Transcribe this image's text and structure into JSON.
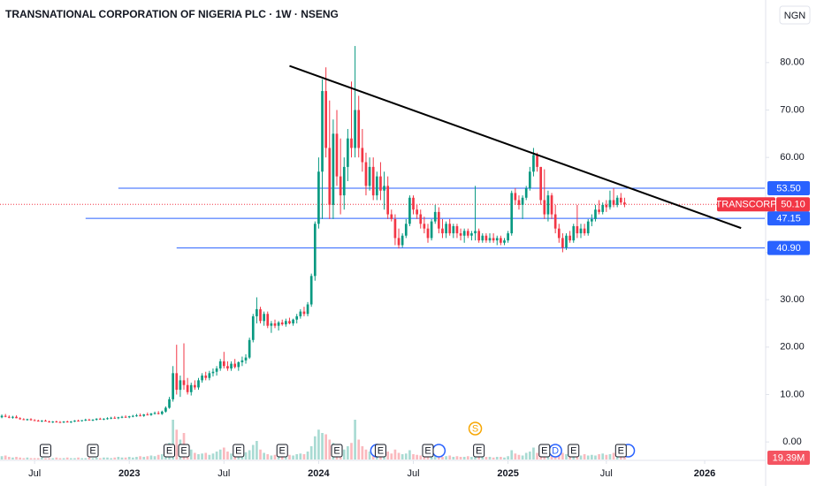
{
  "chart_data": {
    "type": "candlestick",
    "title": "TRANSNATIONAL CORPORATION OF NIGERIA PLC · 1W · NSENG",
    "currency": "NGN",
    "up_color": "#089981",
    "down_color": "#f23645",
    "xlim": [
      -0.5,
      209.5
    ],
    "xticks": [
      {
        "value": 9,
        "label": "Jul"
      },
      {
        "value": 35,
        "label": "2023"
      },
      {
        "value": 61,
        "label": "Jul"
      },
      {
        "value": 87,
        "label": "2024"
      },
      {
        "value": 113,
        "label": "Jul"
      },
      {
        "value": 139,
        "label": "2025"
      },
      {
        "value": 166,
        "label": "Jul"
      },
      {
        "value": 193,
        "label": "2026"
      }
    ],
    "ylim": [
      -3.7,
      93.2
    ],
    "yticks": [
      {
        "value": 0,
        "label": "0.00"
      },
      {
        "value": 10,
        "label": "10.00"
      },
      {
        "value": 20,
        "label": "20.00"
      },
      {
        "value": 30,
        "label": "30.00"
      },
      {
        "value": 40,
        "label": "40.00"
      },
      {
        "value": 50,
        "label": "50.00"
      },
      {
        "value": 60,
        "label": "60.00"
      },
      {
        "value": 70,
        "label": "70.00"
      },
      {
        "value": 80,
        "label": "80.00"
      }
    ],
    "candles": [
      [
        5.2,
        5.8,
        5.0,
        5.5
      ],
      [
        5.5,
        5.9,
        5.2,
        5.3
      ],
      [
        5.3,
        5.6,
        5.0,
        5.1
      ],
      [
        5.1,
        5.5,
        4.9,
        5.3
      ],
      [
        5.3,
        5.6,
        5.0,
        5.0
      ],
      [
        5.0,
        5.2,
        4.7,
        4.8
      ],
      [
        4.8,
        5.0,
        4.6,
        4.7
      ],
      [
        4.7,
        4.9,
        4.5,
        4.8
      ],
      [
        4.8,
        5.0,
        4.5,
        4.6
      ],
      [
        4.6,
        4.8,
        4.4,
        4.5
      ],
      [
        4.5,
        4.7,
        4.3,
        4.4
      ],
      [
        4.4,
        4.6,
        4.2,
        4.5
      ],
      [
        4.5,
        4.7,
        4.3,
        4.3
      ],
      [
        4.3,
        4.5,
        4.1,
        4.2
      ],
      [
        4.2,
        4.4,
        4.0,
        4.3
      ],
      [
        4.3,
        4.5,
        4.1,
        4.2
      ],
      [
        4.2,
        4.4,
        4.0,
        4.1
      ],
      [
        4.1,
        4.4,
        4.0,
        4.3
      ],
      [
        4.3,
        4.5,
        4.1,
        4.2
      ],
      [
        4.2,
        4.4,
        4.0,
        4.3
      ],
      [
        4.3,
        4.6,
        4.2,
        4.5
      ],
      [
        4.5,
        4.7,
        4.3,
        4.4
      ],
      [
        4.4,
        4.6,
        4.3,
        4.6
      ],
      [
        4.6,
        4.9,
        4.4,
        4.7
      ],
      [
        4.7,
        4.9,
        4.5,
        4.6
      ],
      [
        4.6,
        4.8,
        4.4,
        4.7
      ],
      [
        4.7,
        5.0,
        4.5,
        4.9
      ],
      [
        4.9,
        5.1,
        4.7,
        4.8
      ],
      [
        4.8,
        5.0,
        4.6,
        4.9
      ],
      [
        4.9,
        5.2,
        4.7,
        5.0
      ],
      [
        5.0,
        5.3,
        4.8,
        5.1
      ],
      [
        5.1,
        5.4,
        4.9,
        5.0
      ],
      [
        5.0,
        5.3,
        4.8,
        5.2
      ],
      [
        5.2,
        5.5,
        5.0,
        5.3
      ],
      [
        5.3,
        5.6,
        5.1,
        5.2
      ],
      [
        5.2,
        5.5,
        5.0,
        5.4
      ],
      [
        5.4,
        5.7,
        5.2,
        5.5
      ],
      [
        5.5,
        5.9,
        5.3,
        5.6
      ],
      [
        5.6,
        6.0,
        5.4,
        5.5
      ],
      [
        5.5,
        5.9,
        5.3,
        5.8
      ],
      [
        5.8,
        6.2,
        5.6,
        5.7
      ],
      [
        5.7,
        6.1,
        5.5,
        6.0
      ],
      [
        6.0,
        6.4,
        5.8,
        6.1
      ],
      [
        6.1,
        6.5,
        5.8,
        5.9
      ],
      [
        5.9,
        6.6,
        5.7,
        6.4
      ],
      [
        6.4,
        7.5,
        6.2,
        7.2
      ],
      [
        7.2,
        9.5,
        7.0,
        9.0
      ],
      [
        9.0,
        16.0,
        8.5,
        14.5
      ],
      [
        14.5,
        20.5,
        10.0,
        11.0
      ],
      [
        11.0,
        14.0,
        9.5,
        13.0
      ],
      [
        13.0,
        20.8,
        11.0,
        12.0
      ],
      [
        12.0,
        13.5,
        10.0,
        10.5
      ],
      [
        10.5,
        12.5,
        9.8,
        12.0
      ],
      [
        12.0,
        13.0,
        11.0,
        11.5
      ],
      [
        11.5,
        13.5,
        11.0,
        13.0
      ],
      [
        13.0,
        14.5,
        12.5,
        14.0
      ],
      [
        14.0,
        14.8,
        13.0,
        13.5
      ],
      [
        13.5,
        15.0,
        13.0,
        14.5
      ],
      [
        14.5,
        15.5,
        13.8,
        14.8
      ],
      [
        14.8,
        16.0,
        14.0,
        15.5
      ],
      [
        15.5,
        17.5,
        15.0,
        17.0
      ],
      [
        17.0,
        19.0,
        15.5,
        16.0
      ],
      [
        16.0,
        17.0,
        15.0,
        15.5
      ],
      [
        15.5,
        17.0,
        15.0,
        16.5
      ],
      [
        16.5,
        17.5,
        15.5,
        15.8
      ],
      [
        15.8,
        17.0,
        15.0,
        16.8
      ],
      [
        16.8,
        18.0,
        16.0,
        17.2
      ],
      [
        17.2,
        18.5,
        16.5,
        17.8
      ],
      [
        17.8,
        22.0,
        17.5,
        21.5
      ],
      [
        21.5,
        27.0,
        21.0,
        26.5
      ],
      [
        26.5,
        30.5,
        25.0,
        28.0
      ],
      [
        28.0,
        28.5,
        25.0,
        25.5
      ],
      [
        25.5,
        27.5,
        24.5,
        27.0
      ],
      [
        27.0,
        27.5,
        24.0,
        24.5
      ],
      [
        24.5,
        25.5,
        23.0,
        25.0
      ],
      [
        25.0,
        25.8,
        24.0,
        24.5
      ],
      [
        24.5,
        25.5,
        23.5,
        25.2
      ],
      [
        25.2,
        25.8,
        24.5,
        24.8
      ],
      [
        24.8,
        26.0,
        24.3,
        25.5
      ],
      [
        25.5,
        26.2,
        24.8,
        25.0
      ],
      [
        25.0,
        26.0,
        24.5,
        25.8
      ],
      [
        25.8,
        27.0,
        25.0,
        26.5
      ],
      [
        26.5,
        28.0,
        26.0,
        27.5
      ],
      [
        27.5,
        28.5,
        26.5,
        27.0
      ],
      [
        27.0,
        29.5,
        26.5,
        29.0
      ],
      [
        29.0,
        35.5,
        28.5,
        35.0
      ],
      [
        35.0,
        46.5,
        34.0,
        46.0
      ],
      [
        46.0,
        60.0,
        45.0,
        57.0
      ],
      [
        57.0,
        76.5,
        47.0,
        74.0
      ],
      [
        74.0,
        79.0,
        60.0,
        62.0
      ],
      [
        62.0,
        72.0,
        47.0,
        50.0
      ],
      [
        50.0,
        68.0,
        47.0,
        65.0
      ],
      [
        65.0,
        70.0,
        54.0,
        56.0
      ],
      [
        56.0,
        64.0,
        48.0,
        52.0
      ],
      [
        52.0,
        60.0,
        49.0,
        58.0
      ],
      [
        58.0,
        66.0,
        55.0,
        64.0
      ],
      [
        64.0,
        76.0,
        60.0,
        62.0
      ],
      [
        62.0,
        83.5,
        60.0,
        70.0
      ],
      [
        70.0,
        73.0,
        60.0,
        62.0
      ],
      [
        62.0,
        66.0,
        57.0,
        59.0
      ],
      [
        59.0,
        61.0,
        52.0,
        54.0
      ],
      [
        54.0,
        60.0,
        53.0,
        58.0
      ],
      [
        58.0,
        60.0,
        51.0,
        52.0
      ],
      [
        52.0,
        57.0,
        51.0,
        56.0
      ],
      [
        56.0,
        59.0,
        51.0,
        53.0
      ],
      [
        53.0,
        57.0,
        49.0,
        54.0
      ],
      [
        54.0,
        56.0,
        47.0,
        48.0
      ],
      [
        48.0,
        49.0,
        46.5,
        47.0
      ],
      [
        47.0,
        48.0,
        41.5,
        43.0
      ],
      [
        43.0,
        45.0,
        40.8,
        41.5
      ],
      [
        41.5,
        44.0,
        41.0,
        43.5
      ],
      [
        43.5,
        47.0,
        43.0,
        46.0
      ],
      [
        46.0,
        52.0,
        45.5,
        51.5
      ],
      [
        51.5,
        52.0,
        48.0,
        49.0
      ],
      [
        49.0,
        50.0,
        47.0,
        48.0
      ],
      [
        48.0,
        49.0,
        45.0,
        46.0
      ],
      [
        46.0,
        47.5,
        44.0,
        45.0
      ],
      [
        45.0,
        46.0,
        42.0,
        43.0
      ],
      [
        43.0,
        47.0,
        42.5,
        46.5
      ],
      [
        46.5,
        50.0,
        46.0,
        48.5
      ],
      [
        48.5,
        49.5,
        44.0,
        45.0
      ],
      [
        45.0,
        47.0,
        43.0,
        44.0
      ],
      [
        44.0,
        46.5,
        43.0,
        46.0
      ],
      [
        46.0,
        47.0,
        43.5,
        44.0
      ],
      [
        44.0,
        46.0,
        43.0,
        45.5
      ],
      [
        45.5,
        46.0,
        43.0,
        44.0
      ],
      [
        44.0,
        45.0,
        42.5,
        43.5
      ],
      [
        43.5,
        45.0,
        42.0,
        44.5
      ],
      [
        44.5,
        45.0,
        43.0,
        43.5
      ],
      [
        43.5,
        44.5,
        42.5,
        44.0
      ],
      [
        44.0,
        54.0,
        42.5,
        44.5
      ],
      [
        44.5,
        45.0,
        42.0,
        42.5
      ],
      [
        42.5,
        44.0,
        42.0,
        43.5
      ],
      [
        43.5,
        44.0,
        42.0,
        42.5
      ],
      [
        42.5,
        44.0,
        42.0,
        43.0
      ],
      [
        43.0,
        44.0,
        42.0,
        42.5
      ],
      [
        42.5,
        43.5,
        41.5,
        43.0
      ],
      [
        43.0,
        43.5,
        41.5,
        42.0
      ],
      [
        42.0,
        43.0,
        41.5,
        42.5
      ],
      [
        42.5,
        44.5,
        42.0,
        44.0
      ],
      [
        44.0,
        53.0,
        43.5,
        52.5
      ],
      [
        52.5,
        53.5,
        50.0,
        51.0
      ],
      [
        51.0,
        52.0,
        49.0,
        50.0
      ],
      [
        50.0,
        52.0,
        47.0,
        51.5
      ],
      [
        51.5,
        54.0,
        51.0,
        53.5
      ],
      [
        53.5,
        58.0,
        53.0,
        57.0
      ],
      [
        57.0,
        62.0,
        56.0,
        60.5
      ],
      [
        60.5,
        61.0,
        57.0,
        58.0
      ],
      [
        58.0,
        58.0,
        50.0,
        51.0
      ],
      [
        51.0,
        57.5,
        47.0,
        48.0
      ],
      [
        48.0,
        53.0,
        46.5,
        52.0
      ],
      [
        52.0,
        52.5,
        47.0,
        48.0
      ],
      [
        48.0,
        50.0,
        44.0,
        45.0
      ],
      [
        45.0,
        46.0,
        42.0,
        43.0
      ],
      [
        43.0,
        44.0,
        40.0,
        41.0
      ],
      [
        41.0,
        44.0,
        40.5,
        43.5
      ],
      [
        43.5,
        44.5,
        42.0,
        42.5
      ],
      [
        42.5,
        46.0,
        42.0,
        45.5
      ],
      [
        45.5,
        50.0,
        43.0,
        44.0
      ],
      [
        44.0,
        46.0,
        43.0,
        45.0
      ],
      [
        45.0,
        46.0,
        43.5,
        44.0
      ],
      [
        44.0,
        47.0,
        43.5,
        46.5
      ],
      [
        46.5,
        48.0,
        45.5,
        47.0
      ],
      [
        47.0,
        50.0,
        46.5,
        49.0
      ],
      [
        49.0,
        51.0,
        48.0,
        48.5
      ],
      [
        48.5,
        50.5,
        48.0,
        50.0
      ],
      [
        50.0,
        51.0,
        48.5,
        49.5
      ],
      [
        49.5,
        53.0,
        49.0,
        51.0
      ],
      [
        51.0,
        53.5,
        49.5,
        50.0
      ],
      [
        50.0,
        52.0,
        49.5,
        51.5
      ],
      [
        51.5,
        52.5,
        50.0,
        50.5
      ],
      [
        50.5,
        51.5,
        49.5,
        50.1
      ]
    ],
    "volume": [
      5,
      6,
      4,
      3,
      4,
      3,
      2,
      3,
      2,
      2,
      2,
      3,
      2,
      2,
      2,
      3,
      2,
      2,
      3,
      2,
      2,
      3,
      2,
      2,
      3,
      2,
      3,
      2,
      3,
      3,
      2,
      3,
      4,
      3,
      3,
      4,
      3,
      4,
      5,
      4,
      5,
      6,
      5,
      7,
      8,
      12,
      25,
      60,
      45,
      30,
      40,
      20,
      15,
      10,
      8,
      9,
      10,
      7,
      9,
      12,
      15,
      18,
      12,
      9,
      8,
      10,
      9,
      11,
      14,
      22,
      28,
      15,
      10,
      8,
      6,
      7,
      6,
      5,
      6,
      7,
      6,
      8,
      9,
      8,
      12,
      20,
      35,
      45,
      40,
      38,
      30,
      25,
      22,
      18,
      15,
      20,
      25,
      60,
      30,
      20,
      15,
      12,
      10,
      14,
      10,
      9,
      12,
      9,
      15,
      10,
      8,
      9,
      14,
      8,
      7,
      6,
      5,
      6,
      8,
      7,
      5,
      4,
      5,
      6,
      4,
      5,
      4,
      4,
      5,
      4,
      10,
      5,
      4,
      4,
      4,
      3,
      4,
      4,
      3,
      5,
      14,
      9,
      7,
      6,
      10,
      12,
      18,
      10,
      14,
      12,
      8,
      7,
      9,
      15,
      10,
      8,
      6,
      7,
      5,
      6,
      8,
      6,
      7,
      6,
      8,
      9,
      7,
      8,
      10,
      9,
      8,
      19.39
    ],
    "volume_last_label": "19.39M",
    "levels": [
      {
        "value": 53.5,
        "label": "53.50",
        "from": 32
      },
      {
        "value": 47.15,
        "label": "47.15",
        "from": 23
      },
      {
        "value": 40.9,
        "label": "40.90",
        "from": 48
      }
    ],
    "last": {
      "name": "TRANSCORP",
      "value": 50.1,
      "label": "50.10"
    },
    "trendline": {
      "x": [
        79,
        203
      ],
      "y": [
        79.3,
        45.1
      ]
    },
    "events": [
      {
        "label": "E",
        "x": 12
      },
      {
        "label": "E",
        "x": 25
      },
      {
        "label": "E",
        "x": 46
      },
      {
        "label": "E",
        "x": 50
      },
      {
        "label": "E",
        "x": 65
      },
      {
        "label": "E",
        "x": 77
      },
      {
        "label": "E",
        "x": 92
      },
      {
        "label": "E",
        "x": 104
      },
      {
        "label": "E",
        "x": 117
      },
      {
        "label": "E",
        "x": 131
      },
      {
        "label": "E",
        "x": 149
      },
      {
        "label": "E",
        "x": 157
      },
      {
        "label": "E",
        "x": 170
      }
    ],
    "dividends": [
      {
        "x": 103
      },
      {
        "x": 120
      },
      {
        "label": "D",
        "x": 152
      },
      {
        "x": 172
      }
    ],
    "splits": [
      {
        "label": "S",
        "x": 130
      }
    ]
  }
}
